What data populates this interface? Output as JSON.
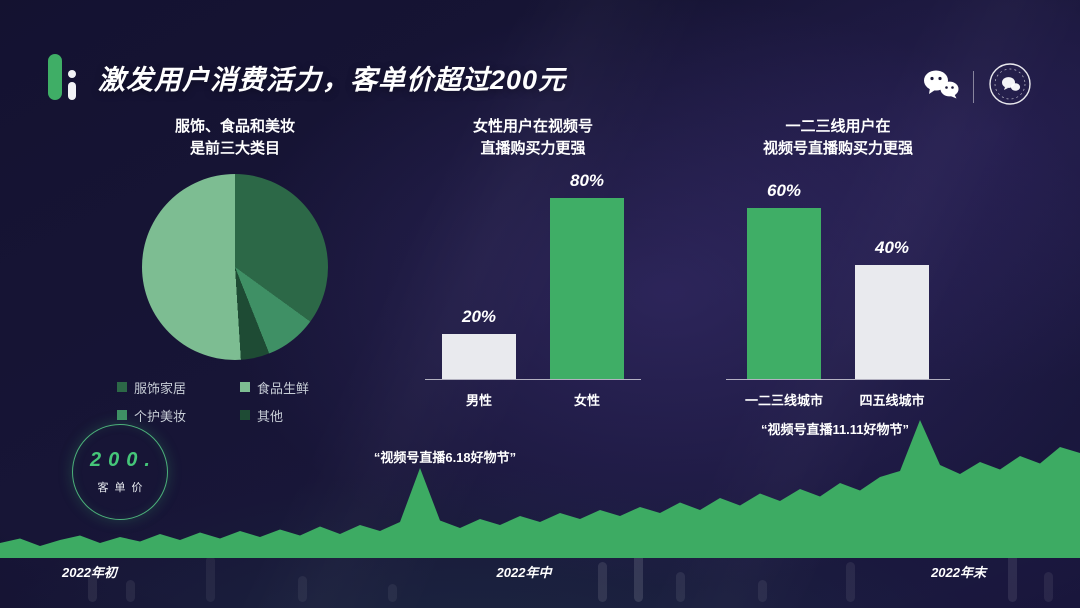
{
  "header": {
    "title": "激发用户消费活力，客单价超过200元"
  },
  "icons": {
    "wechat": "wechat-logo",
    "seal": "circular-seal-badge"
  },
  "accent_colors": {
    "green": "#3fae66",
    "light_gray": "#e9eaee",
    "badge_green": "#45c679"
  },
  "chart_data": [
    {
      "type": "pie",
      "title_lines": [
        "服饰、食品和美妆",
        "是前三大类目"
      ],
      "slices": [
        {
          "label": "服饰家居",
          "value": 35,
          "color": "#2c6847"
        },
        {
          "label": "个护美妆",
          "value": 9,
          "color": "#3f9065"
        },
        {
          "label": "其他",
          "value": 5,
          "color": "#1e4b34"
        },
        {
          "label": "食品生鲜",
          "value": 51,
          "color": "#7dbd92"
        }
      ],
      "legend": [
        {
          "label": "服饰家居",
          "color": "#2c6847"
        },
        {
          "label": "食品生鲜",
          "color": "#7dbd92"
        },
        {
          "label": "个护美妆",
          "color": "#3f9065"
        },
        {
          "label": "其他",
          "color": "#1e4b34"
        }
      ]
    },
    {
      "type": "bar",
      "title_lines": [
        "女性用户在视频号",
        "直播购买力更强"
      ],
      "categories": [
        "男性",
        "女性"
      ],
      "values": [
        20,
        80
      ],
      "value_labels": [
        "20%",
        "80%"
      ],
      "colors": [
        "#e9eaee",
        "#3fae66"
      ],
      "ylim": [
        0,
        100
      ]
    },
    {
      "type": "bar",
      "title_lines": [
        "一二三线用户在",
        "视频号直播购买力更强"
      ],
      "categories": [
        "一二三线城市",
        "四五线城市"
      ],
      "values": [
        60,
        40
      ],
      "value_labels": [
        "60%",
        "40%"
      ],
      "colors": [
        "#3fae66",
        "#e9eaee"
      ],
      "ylim": [
        0,
        100
      ]
    },
    {
      "type": "area",
      "series_name": "客单价",
      "badge": {
        "value": "200.",
        "label": "客单价"
      },
      "annotations": [
        "“视频号直播6.18好物节”",
        "“视频号直播11.11好物节”"
      ],
      "x_labels": [
        "2022年初",
        "2022年中",
        "2022年末"
      ],
      "color": "#3dab63",
      "values": [
        0.1,
        0.13,
        0.08,
        0.12,
        0.15,
        0.1,
        0.14,
        0.11,
        0.16,
        0.12,
        0.17,
        0.13,
        0.18,
        0.14,
        0.19,
        0.15,
        0.21,
        0.16,
        0.22,
        0.18,
        0.24,
        0.6,
        0.25,
        0.2,
        0.26,
        0.22,
        0.28,
        0.24,
        0.3,
        0.26,
        0.32,
        0.28,
        0.34,
        0.3,
        0.37,
        0.32,
        0.4,
        0.35,
        0.43,
        0.38,
        0.46,
        0.41,
        0.5,
        0.45,
        0.54,
        0.58,
        0.92,
        0.62,
        0.56,
        0.64,
        0.59,
        0.68,
        0.63,
        0.74,
        0.7
      ]
    }
  ]
}
